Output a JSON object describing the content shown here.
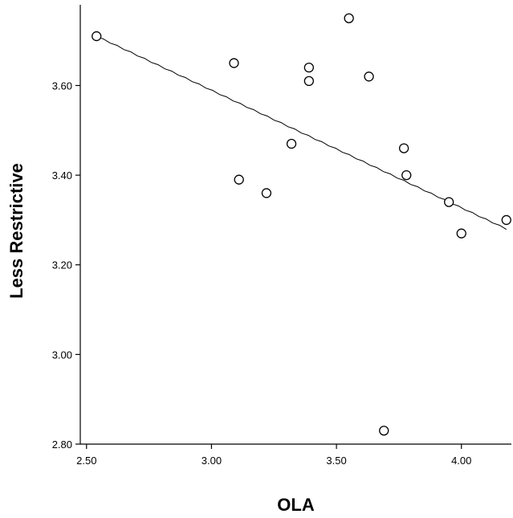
{
  "chart_data": {
    "type": "scatter",
    "xlabel": "OLA",
    "ylabel": "Less Restrictive",
    "xlim": [
      2.475,
      4.2
    ],
    "ylim": [
      2.8,
      3.78
    ],
    "x_ticks": [
      2.5,
      3.0,
      3.5,
      4.0
    ],
    "x_tick_labels": [
      "2.50",
      "3.00",
      "3.50",
      "4.00"
    ],
    "y_ticks": [
      2.8,
      3.0,
      3.2,
      3.4,
      3.6
    ],
    "y_tick_labels": [
      "2.80",
      "3.00",
      "3.20",
      "3.40",
      "3.60"
    ],
    "grid": false,
    "points": [
      {
        "x": 2.54,
        "y": 3.71
      },
      {
        "x": 3.09,
        "y": 3.65
      },
      {
        "x": 3.11,
        "y": 3.39
      },
      {
        "x": 3.22,
        "y": 3.36
      },
      {
        "x": 3.32,
        "y": 3.47
      },
      {
        "x": 3.39,
        "y": 3.64
      },
      {
        "x": 3.39,
        "y": 3.61
      },
      {
        "x": 3.55,
        "y": 3.75
      },
      {
        "x": 3.63,
        "y": 3.62
      },
      {
        "x": 3.69,
        "y": 2.83
      },
      {
        "x": 3.77,
        "y": 3.46
      },
      {
        "x": 3.78,
        "y": 3.4
      },
      {
        "x": 3.95,
        "y": 3.34
      },
      {
        "x": 4.0,
        "y": 3.27
      },
      {
        "x": 4.18,
        "y": 3.3
      }
    ],
    "fit_line": {
      "x": [
        2.54,
        4.18
      ],
      "y": [
        3.71,
        3.28
      ]
    }
  }
}
